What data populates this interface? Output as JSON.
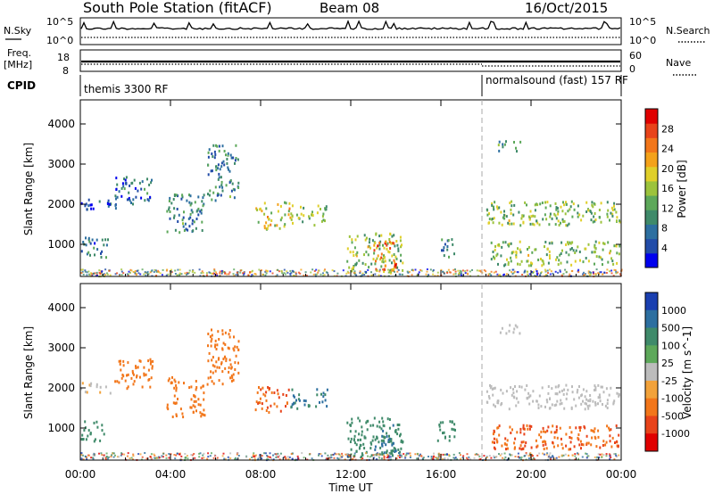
{
  "header": {
    "station": "South Pole Station (fitACF)",
    "beam": "Beam 08",
    "date": "16/Oct/2015"
  },
  "top_panels": {
    "nsky_label": "N.Sky",
    "nsky_ticks": [
      "10^5",
      "10^0"
    ],
    "nsearch_label": "N.Search",
    "nsearch_ticks": [
      "10^5",
      "10^0"
    ],
    "freq_label": "Freq.",
    "freq_unit": "[MHz]",
    "freq_ticks": [
      "18",
      "8"
    ],
    "nave_label": "Nave",
    "nave_ticks": [
      "60",
      "0"
    ],
    "cpid_label": "CPID",
    "modes": [
      {
        "name": "themis 3300 RF",
        "start_hour": 0
      },
      {
        "name": "normalsound (fast) 157 RF",
        "start_hour": 18
      }
    ]
  },
  "chart_data": [
    {
      "type": "heatmap",
      "title": "",
      "xlabel": "Time UT",
      "ylabel": "Slant Range [km]",
      "x_ticks": [
        "00:00",
        "04:00",
        "08:00",
        "12:00",
        "16:00",
        "20:00",
        "00:00"
      ],
      "xlim_hours": [
        0,
        24
      ],
      "y_ticks": [
        1000,
        2000,
        3000,
        4000
      ],
      "ylim": [
        200,
        4600
      ],
      "colorbar": {
        "label": "Power [dB]",
        "ticks": [
          4,
          8,
          12,
          16,
          20,
          24,
          28
        ],
        "colors": [
          "#0000ee",
          "#224ca8",
          "#2d6fa0",
          "#3f8a6a",
          "#5da85a",
          "#9cc33c",
          "#e0cf2a",
          "#f4a21a",
          "#f2761a",
          "#e8431a",
          "#e00000"
        ]
      },
      "regions": [
        {
          "h0": 0.0,
          "h1": 1.6,
          "r0": 1900,
          "r1": 2150,
          "v": 6
        },
        {
          "h0": 0.0,
          "h1": 1.2,
          "r0": 700,
          "r1": 1200,
          "v": 7
        },
        {
          "h0": 1.5,
          "h1": 3.2,
          "r0": 2000,
          "r1": 2750,
          "v": 7
        },
        {
          "h0": 3.8,
          "h1": 5.5,
          "r0": 1300,
          "r1": 2300,
          "v": 9
        },
        {
          "h0": 5.6,
          "h1": 7.0,
          "r0": 2100,
          "r1": 3500,
          "v": 9
        },
        {
          "h0": 7.7,
          "h1": 9.3,
          "r0": 1400,
          "r1": 2100,
          "v": 17
        },
        {
          "h0": 9.3,
          "h1": 11.0,
          "r0": 1500,
          "r1": 2000,
          "v": 14
        },
        {
          "h0": 11.8,
          "h1": 14.3,
          "r0": 300,
          "r1": 1300,
          "v": 14
        },
        {
          "h0": 13.0,
          "h1": 14.0,
          "r0": 300,
          "r1": 1100,
          "v": 22
        },
        {
          "h0": 15.8,
          "h1": 16.6,
          "r0": 700,
          "r1": 1200,
          "v": 8
        },
        {
          "h0": 18.0,
          "h1": 23.9,
          "r0": 1500,
          "r1": 2100,
          "v": 14
        },
        {
          "h0": 18.2,
          "h1": 23.9,
          "r0": 500,
          "r1": 1100,
          "v": 14
        },
        {
          "h0": 18.5,
          "h1": 19.5,
          "r0": 3350,
          "r1": 3600,
          "v": 10
        }
      ]
    },
    {
      "type": "heatmap",
      "title": "",
      "xlabel": "Time UT",
      "ylabel": "Slant Range [km]",
      "x_ticks": [
        "00:00",
        "04:00",
        "08:00",
        "12:00",
        "16:00",
        "20:00",
        "00:00"
      ],
      "xlim_hours": [
        0,
        24
      ],
      "y_ticks": [
        1000,
        2000,
        3000,
        4000
      ],
      "ylim": [
        200,
        4600
      ],
      "colorbar": {
        "label": "Velocity [m s^-1]",
        "ticks": [
          "1000",
          "500",
          "100",
          "25",
          "-25",
          "-100",
          "-500",
          "-1000"
        ],
        "colors": [
          "#1a3fb0",
          "#2d6fa0",
          "#3f8a6a",
          "#5da85a",
          "#bcbcbc",
          "#f2a23a",
          "#f2761a",
          "#e8431a",
          "#e00000"
        ]
      },
      "regions": [
        {
          "h0": 0.0,
          "h1": 1.6,
          "r0": 1900,
          "r1": 2150,
          "v": -20
        },
        {
          "h0": 0.0,
          "h1": 1.2,
          "r0": 700,
          "r1": 1200,
          "v": 200
        },
        {
          "h0": 1.5,
          "h1": 3.2,
          "r0": 2000,
          "r1": 2750,
          "v": -200
        },
        {
          "h0": 3.8,
          "h1": 5.5,
          "r0": 1300,
          "r1": 2300,
          "v": -150
        },
        {
          "h0": 5.6,
          "h1": 7.0,
          "r0": 2100,
          "r1": 3500,
          "v": -120
        },
        {
          "h0": 7.7,
          "h1": 9.3,
          "r0": 1400,
          "r1": 2100,
          "v": -300
        },
        {
          "h0": 9.3,
          "h1": 11.0,
          "r0": 1500,
          "r1": 2000,
          "v": 300
        },
        {
          "h0": 11.8,
          "h1": 14.3,
          "r0": 300,
          "r1": 1300,
          "v": 200
        },
        {
          "h0": 13.0,
          "h1": 14.0,
          "r0": 300,
          "r1": 1100,
          "v": 300
        },
        {
          "h0": 15.8,
          "h1": 16.6,
          "r0": 700,
          "r1": 1200,
          "v": 150
        },
        {
          "h0": 18.0,
          "h1": 23.9,
          "r0": 1500,
          "r1": 2100,
          "v": 0
        },
        {
          "h0": 18.2,
          "h1": 23.9,
          "r0": 500,
          "r1": 1100,
          "v": -300
        },
        {
          "h0": 18.5,
          "h1": 19.5,
          "r0": 3350,
          "r1": 3600,
          "v": 0
        }
      ]
    }
  ]
}
